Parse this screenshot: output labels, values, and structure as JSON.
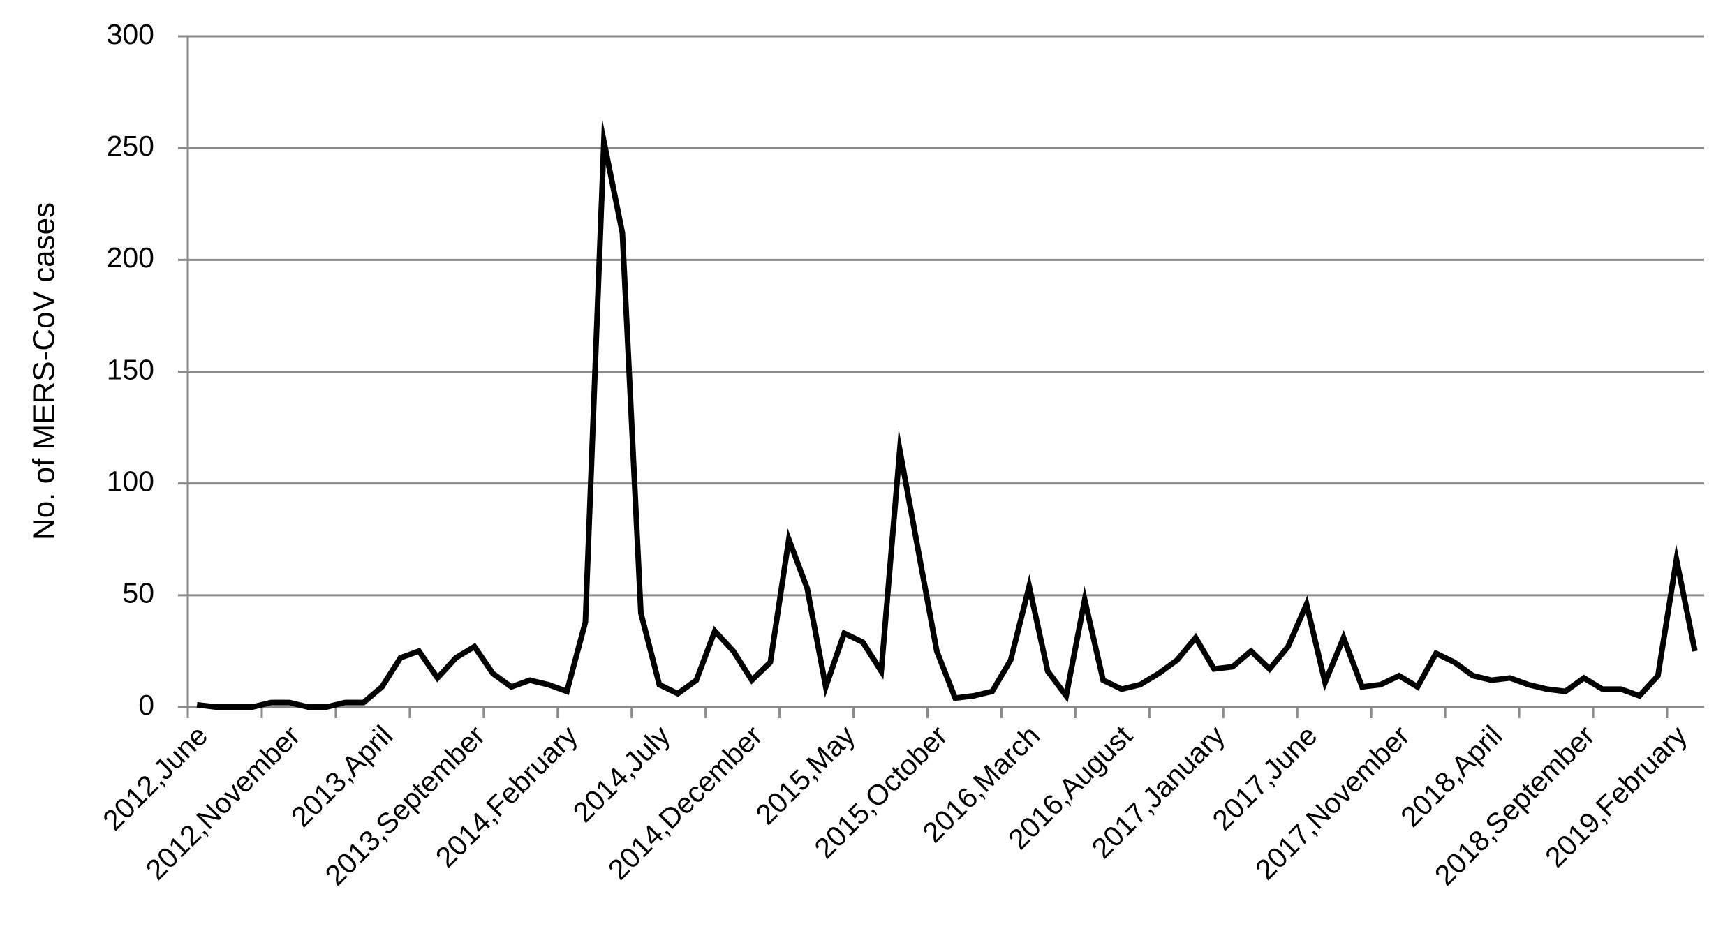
{
  "chart_data": {
    "type": "line",
    "y_label": "No. of MERS-CoV cases",
    "categories": [
      "2012,June",
      null,
      null,
      null,
      null,
      "2012,November",
      null,
      null,
      null,
      null,
      "2013,April",
      null,
      null,
      null,
      null,
      "2013,September",
      null,
      null,
      null,
      null,
      "2014,February",
      null,
      null,
      null,
      null,
      "2014,July",
      null,
      null,
      null,
      null,
      "2014,December",
      null,
      null,
      null,
      null,
      "2015,May",
      null,
      null,
      null,
      null,
      "2015,October",
      null,
      null,
      null,
      null,
      "2016,March",
      null,
      null,
      null,
      null,
      "2016,August",
      null,
      null,
      null,
      null,
      "2017,January",
      null,
      null,
      null,
      null,
      "2017,June",
      null,
      null,
      null,
      null,
      "2017,November",
      null,
      null,
      null,
      null,
      "2018,April",
      null,
      null,
      null,
      null,
      "2018,September",
      null,
      null,
      null,
      null,
      "2019,February",
      null
    ],
    "values": [
      1,
      0,
      0,
      0,
      2,
      2,
      0,
      0,
      2,
      2,
      9,
      22,
      25,
      13,
      22,
      27,
      15,
      9,
      12,
      10,
      7,
      38,
      253,
      212,
      42,
      10,
      6,
      12,
      34,
      25,
      12,
      20,
      75,
      53,
      9,
      33,
      29,
      16,
      115,
      70,
      25,
      4,
      5,
      7,
      21,
      54,
      16,
      5,
      48,
      12,
      8,
      10,
      15,
      21,
      31,
      17,
      18,
      25,
      17,
      27,
      46,
      11,
      31,
      9,
      10,
      14,
      9,
      24,
      20,
      14,
      12,
      13,
      10,
      8,
      7,
      13,
      8,
      8,
      5,
      14,
      66,
      25
    ],
    "color": "#000000",
    "ylim": [
      0,
      300
    ],
    "yticks": [
      0,
      50,
      100,
      150,
      200,
      250,
      300
    ],
    "grid": true
  }
}
